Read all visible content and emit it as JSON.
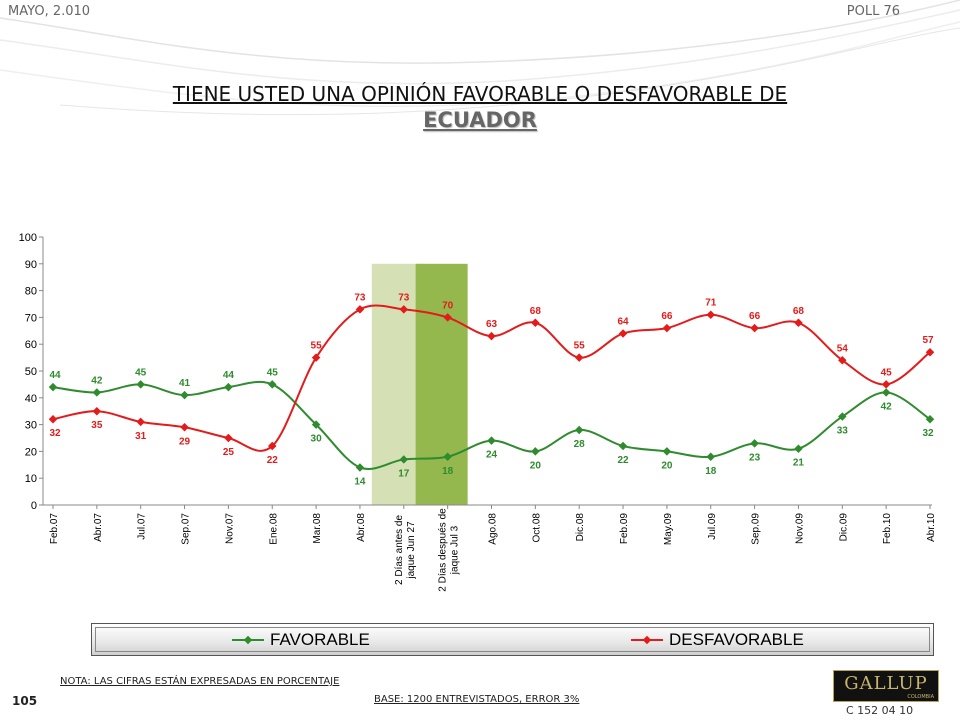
{
  "header": {
    "date": "MAYO, 2.010",
    "poll": "POLL 76"
  },
  "title": {
    "line1": "TIENE USTED UNA OPINIÓN FAVORABLE O DESFAVORABLE DE",
    "line2": "ECUADOR"
  },
  "chart_data": {
    "type": "line",
    "categories": [
      "Feb.07",
      "Abr.07",
      "Jul.07",
      "Sep.07",
      "Nov.07",
      "Ene.08",
      "Mar.08",
      "Abr.08",
      "2 Días antes de jaque Jun 27",
      "2 Días después de jaque Jul 3",
      "Ago.08",
      "Oct.08",
      "Dic.08",
      "Feb.09",
      "May.09",
      "Jul.09",
      "Sep.09",
      "Nov.09",
      "Dic.09",
      "Feb.10",
      "Abr.10"
    ],
    "series": [
      {
        "name": "FAVORABLE",
        "color": "#2e8b2e",
        "values": [
          44,
          42,
          45,
          41,
          44,
          45,
          30,
          14,
          17,
          18,
          24,
          20,
          28,
          22,
          20,
          18,
          23,
          21,
          33,
          42,
          32
        ]
      },
      {
        "name": "DESFAVORABLE",
        "color": "#e31b1b",
        "values": [
          32,
          35,
          31,
          29,
          25,
          22,
          55,
          73,
          73,
          70,
          63,
          68,
          55,
          64,
          66,
          71,
          66,
          68,
          54,
          45,
          57
        ]
      }
    ],
    "ylim": [
      0,
      100
    ],
    "yticks": [
      "0",
      "10",
      "20",
      "30",
      "40",
      "50",
      "60",
      "70",
      "80",
      "90",
      "100"
    ],
    "highlight_bands": [
      {
        "category_index": 8,
        "color": "#d5e1b5"
      },
      {
        "category_index": 9,
        "color": "#94b84e"
      }
    ],
    "legend_position": "bottom"
  },
  "legend": {
    "favorable": "FAVORABLE",
    "desfavorable": "DESFAVORABLE"
  },
  "footer": {
    "note": "NOTA: LAS CIFRAS ESTÁN EXPRESADAS EN PORCENTAJE",
    "page": "105",
    "base": "BASE: 1200 ENTREVISTADOS, ERROR 3%",
    "logo": "GALLUP",
    "logo_sub": "COLOMBIA",
    "code": "C 152 04 10"
  }
}
